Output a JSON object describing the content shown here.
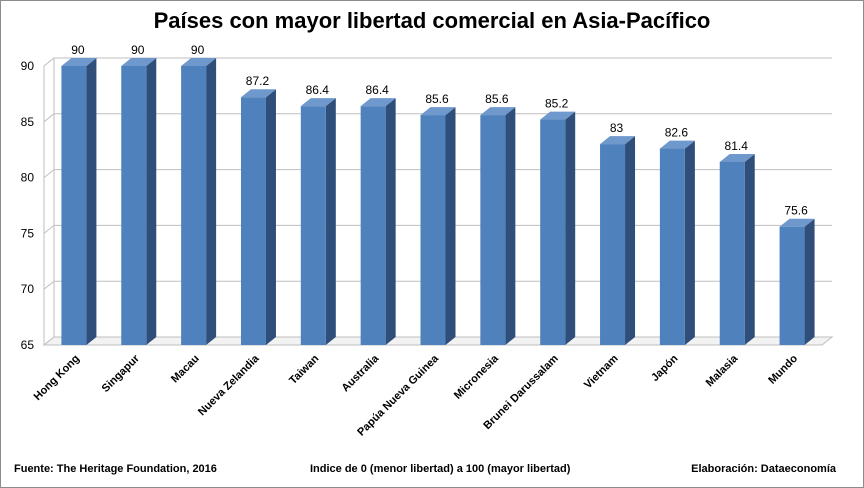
{
  "chart_data": {
    "type": "bar",
    "title": "Países con mayor libertad comercial en Asia-Pacífico",
    "categories": [
      "Hong Kong",
      "Singapur",
      "Macau",
      "Nueva Zelandia",
      "Taiwan",
      "Australia",
      "Papúa Nueva Guinea",
      "Micronesia",
      "Brunei Darussalam",
      "Vietnam",
      "Japón",
      "Malasia",
      "Mundo"
    ],
    "values": [
      90,
      90,
      90,
      87.2,
      86.4,
      86.4,
      85.6,
      85.6,
      85.2,
      83,
      82.6,
      81.4,
      75.6
    ],
    "data_labels": [
      "90",
      "90",
      "90",
      "87.2",
      "86.4",
      "86.4",
      "85.6",
      "85.6",
      "85.2",
      "83",
      "82.6",
      "81.4",
      "75.6"
    ],
    "ylim": [
      65,
      90
    ],
    "yticks": [
      65,
      70,
      75,
      80,
      85,
      90
    ],
    "grid": true,
    "style": "3d-column",
    "colors": {
      "bar_front": "#4f81bd",
      "bar_side": "#2f4f7a",
      "bar_top": "#6f98cc",
      "grid": "#bfbfbf"
    }
  },
  "footer": {
    "source": "Fuente: The Heritage Foundation, 2016",
    "note": "Indice de 0 (menor libertad) a 100  (mayor libertad)",
    "credit": "Elaboración: Dataeconomía"
  }
}
